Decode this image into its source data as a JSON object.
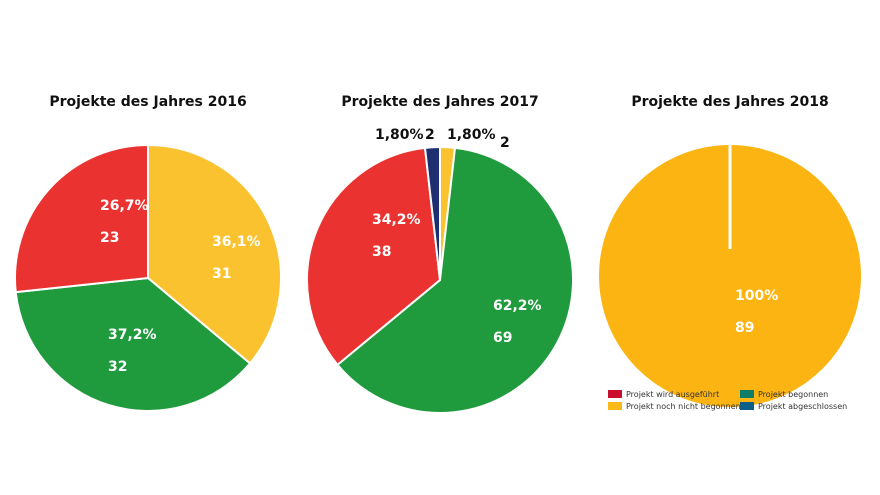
{
  "chart_data": [
    {
      "type": "pie",
      "title": "Projekte des Jahres 2016",
      "slices": [
        {
          "label": "36,1%",
          "count": "31",
          "value": 36.1,
          "color": "#fbc230",
          "status": "Projekt noch nicht begonnen"
        },
        {
          "label": "37,2%",
          "count": "32",
          "value": 37.2,
          "color": "#1f9a3c",
          "status": "Projekt begonnen"
        },
        {
          "label": "26,7%",
          "count": "23",
          "value": 26.7,
          "color": "#ea3330",
          "status": "Projekt wird ausgeführt"
        }
      ]
    },
    {
      "type": "pie",
      "title": "Projekte des Jahres 2017",
      "slices": [
        {
          "label": "1,80%",
          "count": "2",
          "value": 1.8,
          "color": "#fbc230",
          "status": "Projekt noch nicht begonnen"
        },
        {
          "label": "62,2%",
          "count": "69",
          "value": 62.2,
          "color": "#1f9a3c",
          "status": "Projekt begonnen"
        },
        {
          "label": "34,2%",
          "count": "38",
          "value": 34.2,
          "color": "#ea3330",
          "status": "Projekt wird ausgeführt"
        },
        {
          "label": "1,80%",
          "count": "2",
          "value": 1.8,
          "color": "#1d2f70",
          "status": "Projekt abgeschlossen"
        }
      ]
    },
    {
      "type": "pie",
      "title": "Projekte des Jahres 2018",
      "slices": [
        {
          "label": "100%",
          "count": "89",
          "value": 100,
          "color": "#fbb412",
          "status": "Projekt noch nicht begonnen"
        }
      ]
    }
  ],
  "legend": [
    {
      "label": "Projekt wird ausgeführt",
      "color": "#c8102e"
    },
    {
      "label": "Projekt begonnen",
      "color": "#0f7d68"
    },
    {
      "label": "Projekt noch nicht begonnen",
      "color": "#f9b919"
    },
    {
      "label": "Projekt abgeschlossen",
      "color": "#0d5f8a"
    }
  ]
}
